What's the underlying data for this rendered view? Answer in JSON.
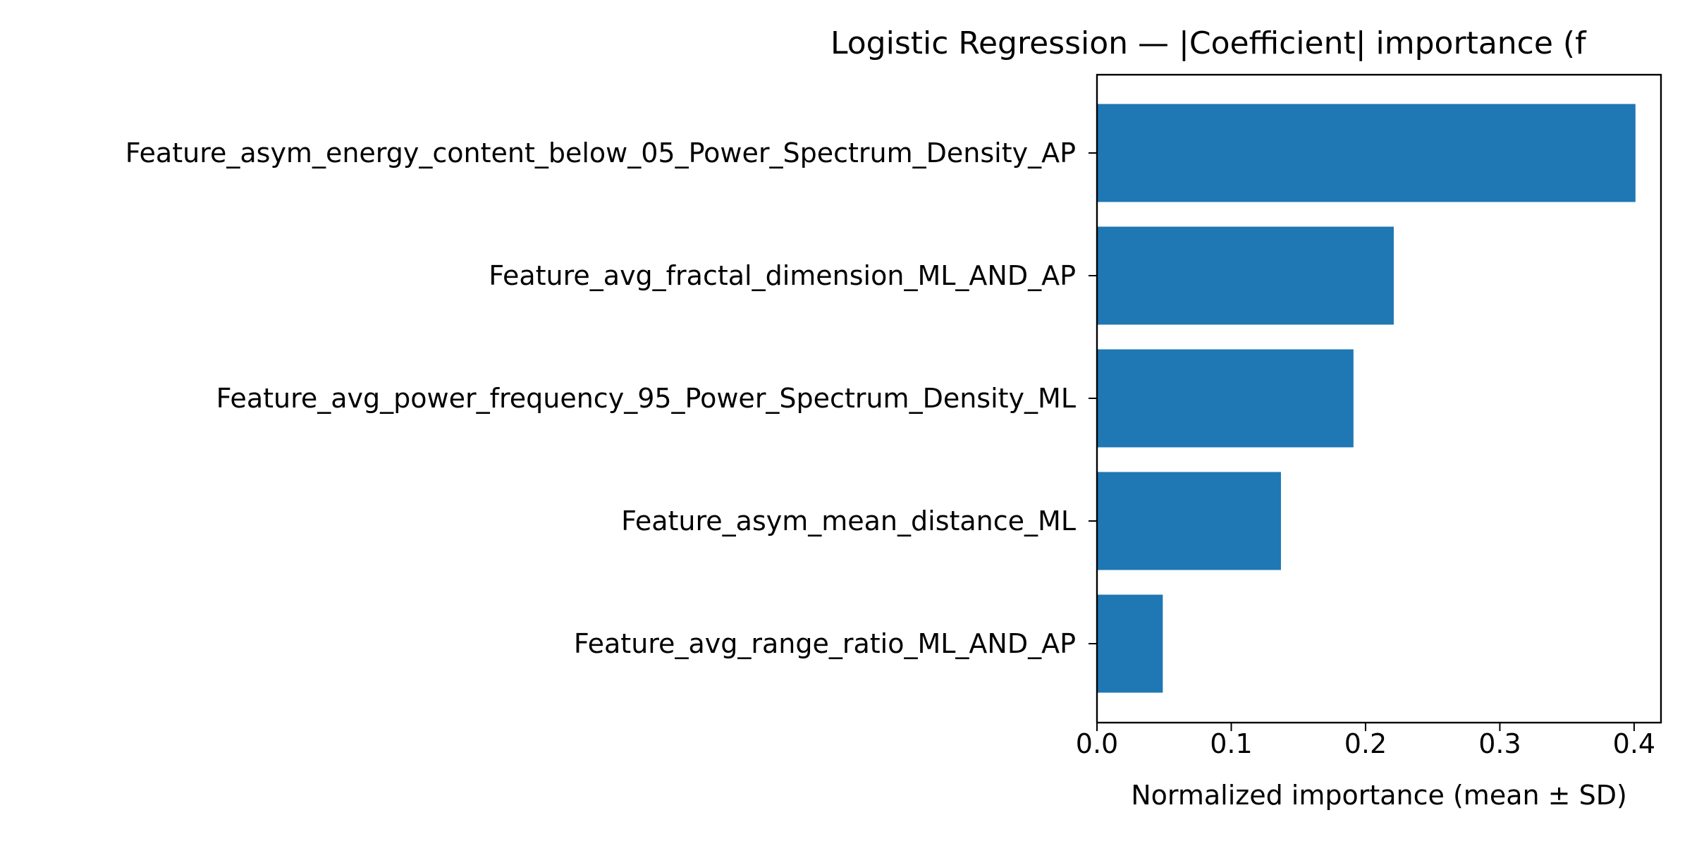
{
  "chart_data": {
    "type": "bar",
    "orientation": "horizontal",
    "title": "Logistic Regression — |Coefficient| importance (f",
    "xlabel": "Normalized importance (mean ± SD)",
    "ylabel": "",
    "categories": [
      "Feature_asym_energy_content_below_05_Power_Spectrum_Density_AP",
      "Feature_avg_fractal_dimension_ML_AND_AP",
      "Feature_avg_power_frequency_95_Power_Spectrum_Density_ML",
      "Feature_asym_mean_distance_ML",
      "Feature_avg_range_ratio_ML_AND_AP"
    ],
    "values": [
      0.401,
      0.221,
      0.191,
      0.137,
      0.049
    ],
    "xlim": [
      0.0,
      0.42
    ],
    "xticks": [
      0.0,
      0.1,
      0.2,
      0.3,
      0.4
    ],
    "xtick_labels": [
      "0.0",
      "0.1",
      "0.2",
      "0.3",
      "0.4"
    ],
    "grid": false,
    "legend": "none",
    "bar_color": "#1f77b4"
  }
}
